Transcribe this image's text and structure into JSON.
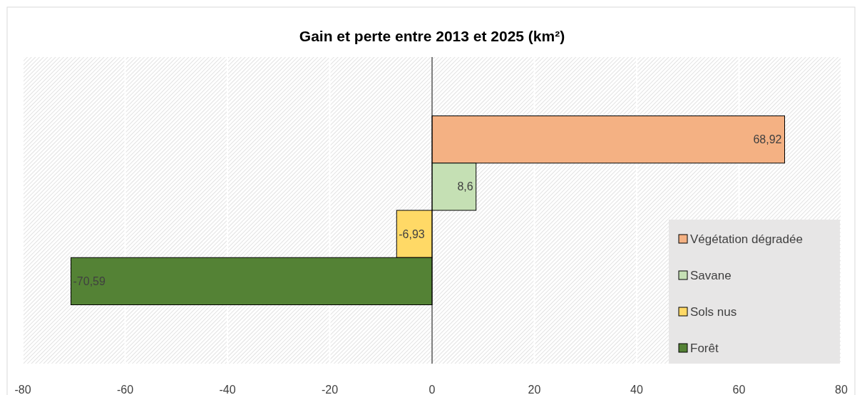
{
  "chart_data": {
    "type": "bar",
    "orientation": "horizontal",
    "title": "Gain et perte  entre 2013 et 2025 (km²)",
    "categories": [
      null
    ],
    "series": [
      {
        "name": "Végétation dégradée",
        "color": "#f4b183",
        "values": [
          68.92
        ],
        "value_labels": [
          "68,92"
        ]
      },
      {
        "name": "Savane",
        "color": "#c5e0b4",
        "values": [
          8.6
        ],
        "value_labels": [
          "8,6"
        ]
      },
      {
        "name": "Sols nus",
        "color": "#ffd966",
        "values": [
          -6.93
        ],
        "value_labels": [
          "-6,93"
        ]
      },
      {
        "name": "Forêt",
        "color": "#548235",
        "values": [
          -70.59
        ],
        "value_labels": [
          "-70,59"
        ]
      }
    ],
    "xlim": [
      -80,
      80
    ],
    "xticks": [
      -80,
      -60,
      -40,
      -20,
      0,
      20,
      40,
      60,
      80
    ],
    "grid": "x",
    "legend": "right"
  }
}
